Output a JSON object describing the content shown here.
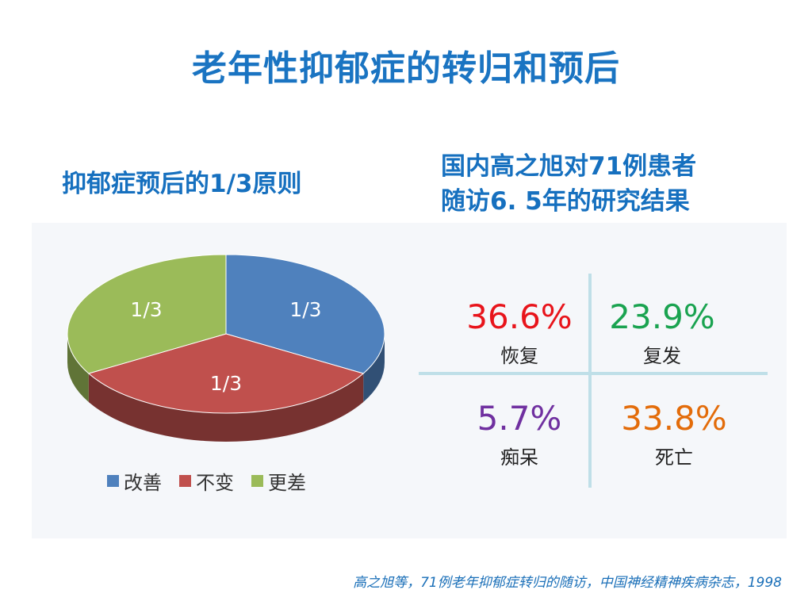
{
  "title": "老年性抑郁症的转归和预后",
  "left_subtitle": "抑郁症预后的1/3原则",
  "right_subtitle": {
    "line1": "国内高之旭对71例患者",
    "line2": "随访6. 5年的研究结果"
  },
  "chart_data": {
    "type": "pie",
    "categories": [
      "改善",
      "不变",
      "更差"
    ],
    "values": [
      1,
      1,
      1
    ],
    "slice_labels": [
      "1/3",
      "1/3",
      "1/3"
    ],
    "colors": [
      "#4f81bd",
      "#c0504d",
      "#9bbb59"
    ],
    "legend_placement": "bottom"
  },
  "stats": [
    {
      "value": "36.6%",
      "label": "恢复",
      "color": "#e8141b"
    },
    {
      "value": "23.9%",
      "label": "复发",
      "color": "#1aa350"
    },
    {
      "value": "5.7%",
      "label": "痴呆",
      "color": "#7030a0"
    },
    {
      "value": "33.8%",
      "label": "死亡",
      "color": "#e36c0a"
    }
  ],
  "footnote": "高之旭等，71例老年抑郁症转归的随访，中国神经精神疾病杂志，1998"
}
